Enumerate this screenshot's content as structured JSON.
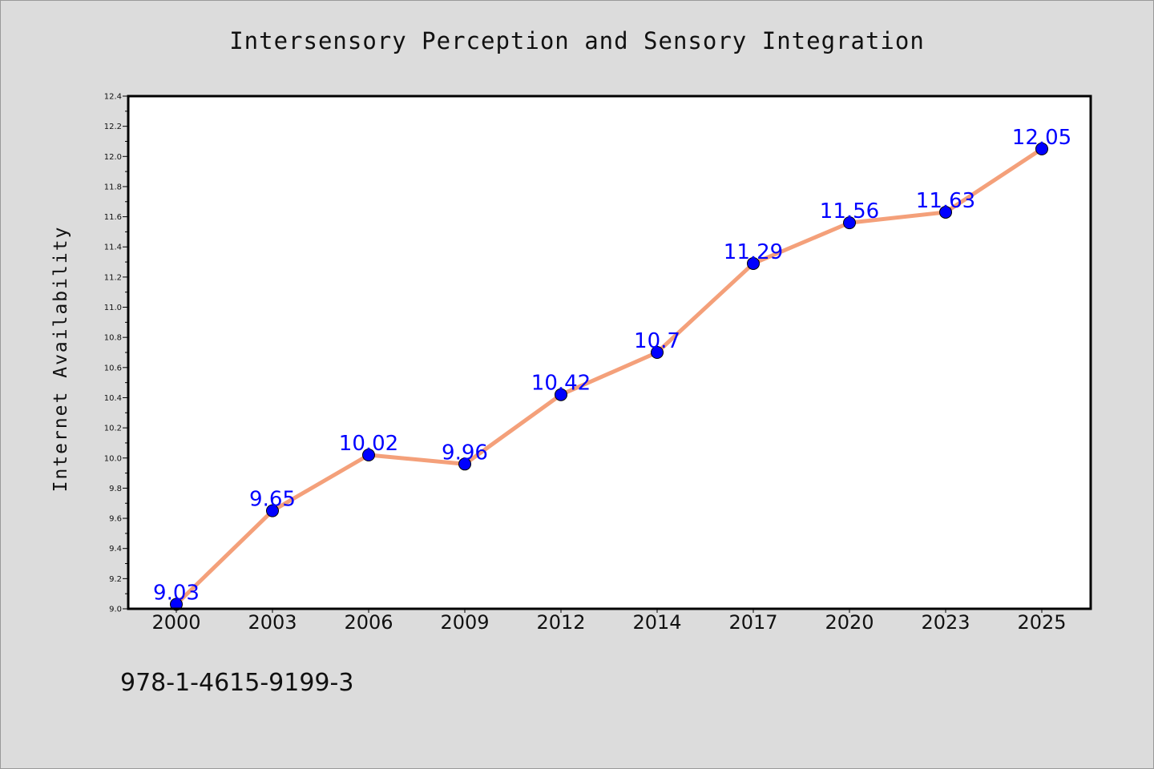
{
  "chart_data": {
    "type": "line",
    "title": "Intersensory Perception and Sensory Integration",
    "xlabel": "",
    "ylabel": "Internet Availability",
    "categories": [
      "2000",
      "2003",
      "2006",
      "2009",
      "2012",
      "2014",
      "2017",
      "2020",
      "2023",
      "2025"
    ],
    "series": [
      {
        "values": [
          9.03,
          9.65,
          10.02,
          9.96,
          10.42,
          10.7,
          11.29,
          11.56,
          11.63,
          12.05
        ],
        "data_labels": [
          "9.03",
          "9.65",
          "10.02",
          "9.96",
          "10.42",
          "10.7",
          "11.29",
          "11.56",
          "11.63",
          "12.05"
        ]
      }
    ],
    "ylim": [
      9.0,
      12.4
    ],
    "yticks": [
      "9.0",
      "9.2",
      "9.4",
      "9.6",
      "9.8",
      "10.0",
      "10.2",
      "10.4",
      "10.6",
      "10.8",
      "11.0",
      "11.2",
      "11.4",
      "11.6",
      "11.8",
      "12.0",
      "12.2",
      "12.4"
    ],
    "grid": false,
    "legend": "none",
    "colors": {
      "line": "#f4a07a",
      "marker": "#0000ff",
      "data_label": "#0000ff",
      "background": "#dcdcdc",
      "plot_background": "#ffffff"
    }
  },
  "footnote": "978-1-4615-9199-3"
}
